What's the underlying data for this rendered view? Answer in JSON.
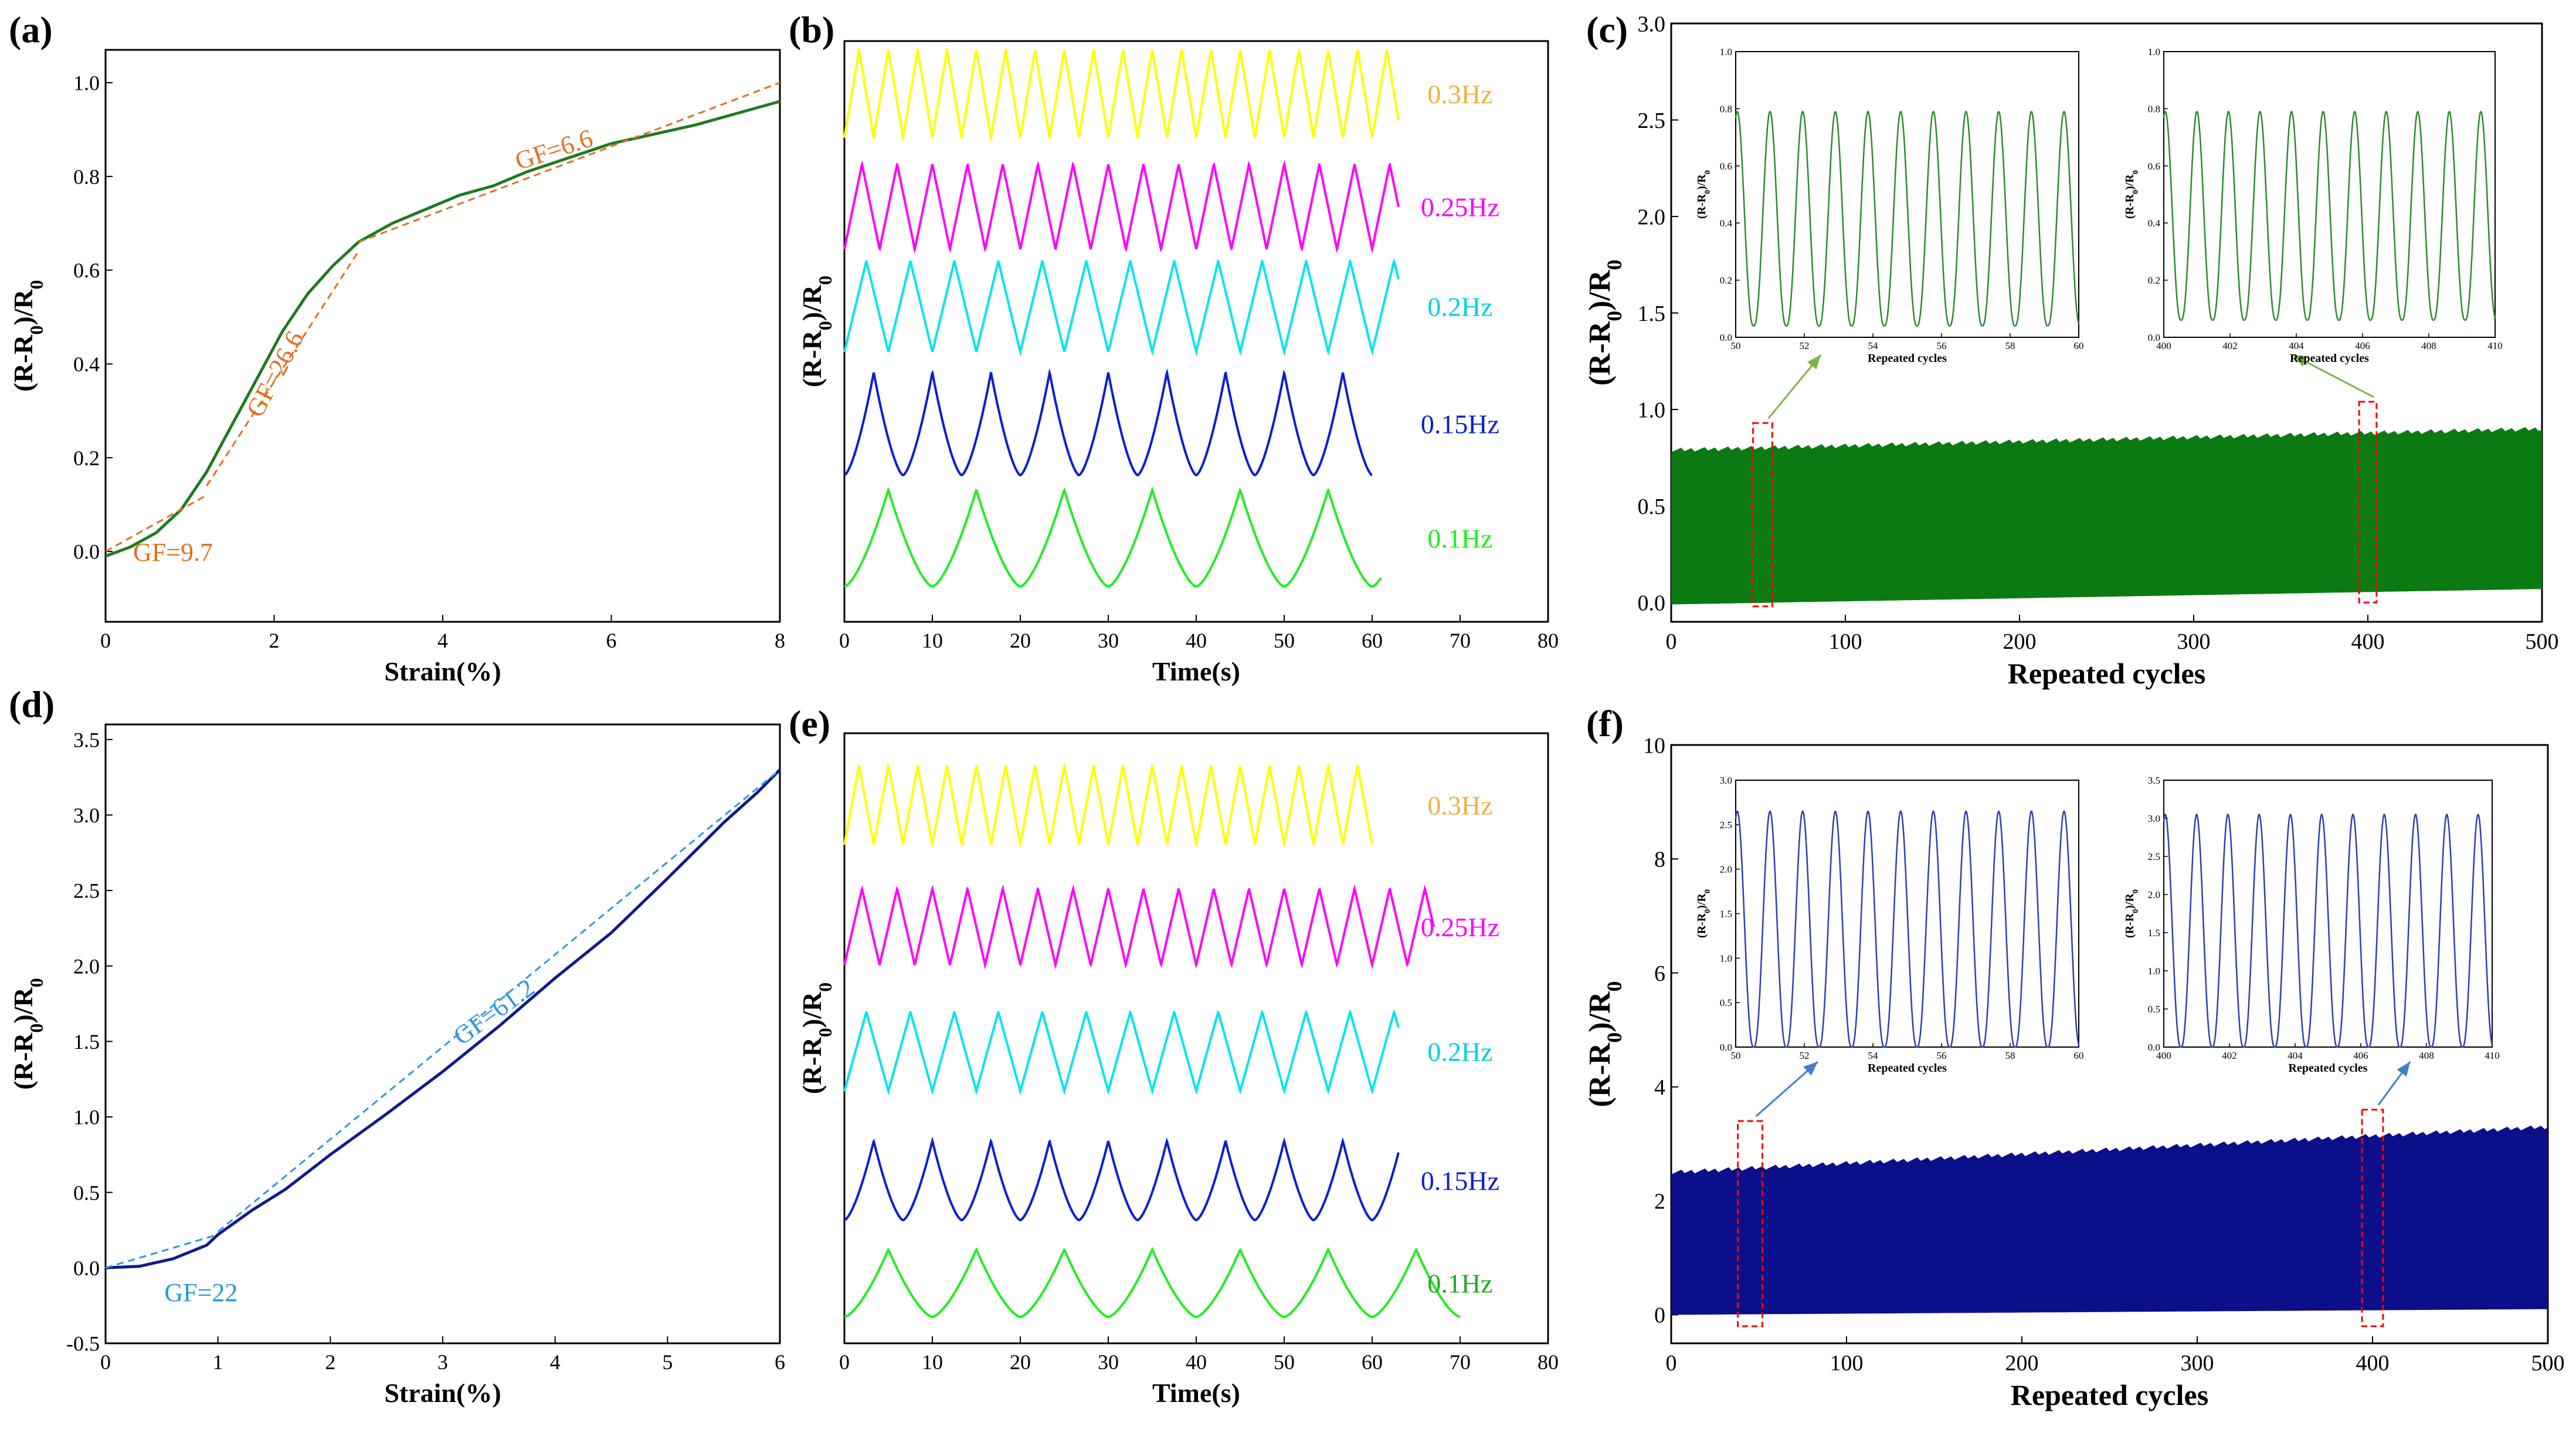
{
  "panel_labels": [
    "(a)",
    "(b)",
    "(c)",
    "(d)",
    "(e)",
    "(f)"
  ],
  "colors": {
    "green_curve": "#1f7a1f",
    "fit_orange": "#e07020",
    "navy_curve": "#101a8a",
    "fit_blue": "#2a9ad8",
    "fill_green": "#0b7a12",
    "fill_navy": "#0c0f8a",
    "inset_green": "#2e8b2e",
    "inset_blue": "#2f3fb0",
    "box_red": "#ff0000",
    "arrow_green": "#7ab648",
    "arrow_blue": "#3f7fc8"
  },
  "chart_data": [
    {
      "panel": "(a)",
      "type": "line",
      "xlabel": "Strain(%)",
      "ylabel": "(R-R0)/R0",
      "xlim": [
        0,
        8
      ],
      "ylim": [
        -0.15,
        1.07
      ],
      "xticks": [
        "0",
        "2",
        "4",
        "6",
        "8"
      ],
      "yticks": [
        "0.0",
        "0.2",
        "0.4",
        "0.6",
        "0.8",
        "1.0"
      ],
      "series": [
        {
          "name": "response",
          "x": [
            0,
            0.3,
            0.6,
            0.9,
            1.2,
            1.5,
            1.8,
            2.1,
            2.4,
            2.7,
            3.0,
            3.4,
            3.8,
            4.2,
            4.6,
            5.0,
            5.5,
            6.0,
            6.5,
            7.0,
            7.5,
            8.0
          ],
          "y": [
            -0.01,
            0.01,
            0.04,
            0.09,
            0.17,
            0.27,
            0.37,
            0.47,
            0.55,
            0.61,
            0.66,
            0.7,
            0.73,
            0.76,
            0.78,
            0.81,
            0.84,
            0.87,
            0.89,
            0.91,
            0.935,
            0.96
          ]
        }
      ],
      "fits": [
        {
          "label": "GF=9.7",
          "x": [
            0,
            1.2
          ],
          "y": [
            0.0,
            0.12
          ]
        },
        {
          "label": "GF=26.6",
          "x": [
            1.2,
            3.0
          ],
          "y": [
            0.14,
            0.64
          ]
        },
        {
          "label": "GF=6.6",
          "x": [
            3.0,
            8.0
          ],
          "y": [
            0.66,
            1.0
          ]
        }
      ]
    },
    {
      "panel": "(b)",
      "type": "line",
      "xlabel": "Time(s)",
      "ylabel": "(R-R0)/R0",
      "xlim": [
        0,
        80
      ],
      "xticks": [
        "0",
        "10",
        "20",
        "30",
        "40",
        "50",
        "60",
        "70",
        "80"
      ],
      "series": [
        {
          "name": "0.3Hz",
          "frequency_hz": 0.3,
          "t_end": 63,
          "shape": "triangle",
          "color": "#ffff00",
          "label_color": "#f0b040"
        },
        {
          "name": "0.25Hz",
          "frequency_hz": 0.25,
          "t_end": 63,
          "shape": "triangle",
          "color": "#ff00ff",
          "label_color": "#ff00ff"
        },
        {
          "name": "0.2Hz",
          "frequency_hz": 0.2,
          "t_end": 63,
          "shape": "triangle",
          "color": "#00e5ee",
          "label_color": "#00d0e0"
        },
        {
          "name": "0.15Hz",
          "frequency_hz": 0.15,
          "t_end": 60,
          "shape": "cusp",
          "color": "#0a1fd0",
          "label_color": "#0a1fd0"
        },
        {
          "name": "0.1Hz",
          "frequency_hz": 0.1,
          "t_end": 61,
          "shape": "cusp",
          "color": "#22ee22",
          "label_color": "#22ee22"
        }
      ]
    },
    {
      "panel": "(c)",
      "type": "area",
      "xlabel": "Repeated cycles",
      "ylabel": "(R-R0)/R0",
      "xlim": [
        0,
        500
      ],
      "ylim": [
        -0.1,
        3.0
      ],
      "xticks": [
        "0",
        "100",
        "200",
        "300",
        "400",
        "500"
      ],
      "yticks": [
        "0.0",
        "0.5",
        "1.0",
        "1.5",
        "2.0",
        "2.5",
        "3.0"
      ],
      "upper_envelope": {
        "x": [
          0,
          500
        ],
        "y": [
          0.79,
          0.9
        ]
      },
      "lower_envelope": {
        "x": [
          0,
          500
        ],
        "y": [
          -0.01,
          0.07
        ]
      },
      "highlight_boxes": [
        {
          "x_range": [
            47,
            58
          ],
          "y_range": [
            -0.02,
            0.93
          ]
        },
        {
          "x_range": [
            395,
            405
          ],
          "y_range": [
            0.0,
            1.04
          ]
        }
      ],
      "insets": [
        {
          "xlabel": "Repeated cycles",
          "ylabel": "(R-R0)/R0",
          "xlim": [
            50,
            60
          ],
          "ylim": [
            0,
            1.0
          ],
          "xticks": [
            "50",
            "52",
            "54",
            "56",
            "58",
            "60"
          ],
          "yticks": [
            "0.0",
            "0.2",
            "0.4",
            "0.6",
            "0.8",
            "1.0"
          ],
          "peak": 0.79,
          "trough": 0.04
        },
        {
          "xlabel": "Repeated cycles",
          "ylabel": "(R-R0)/R0",
          "xlim": [
            400,
            410
          ],
          "ylim": [
            0,
            1.0
          ],
          "xticks": [
            "400",
            "402",
            "404",
            "406",
            "408",
            "410"
          ],
          "yticks": [
            "0.0",
            "0.2",
            "0.4",
            "0.6",
            "0.8",
            "1.0"
          ],
          "peak": 0.79,
          "trough": 0.06
        }
      ]
    },
    {
      "panel": "(d)",
      "type": "line",
      "xlabel": "Strain(%)",
      "ylabel": "(R-R0)/R0",
      "xlim": [
        0,
        6
      ],
      "ylim": [
        -0.5,
        3.6
      ],
      "xticks": [
        "0",
        "1",
        "2",
        "3",
        "4",
        "5",
        "6"
      ],
      "yticks": [
        "-0.5",
        "0.0",
        "0.5",
        "1.0",
        "1.5",
        "2.0",
        "2.5",
        "3.0",
        "3.5"
      ],
      "series": [
        {
          "name": "response",
          "x": [
            0,
            0.3,
            0.6,
            0.9,
            1.0,
            1.3,
            1.6,
            2.0,
            2.5,
            3.0,
            3.5,
            4.0,
            4.5,
            5.0,
            5.5,
            5.8,
            6.0
          ],
          "y": [
            0.0,
            0.01,
            0.06,
            0.15,
            0.22,
            0.38,
            0.52,
            0.75,
            1.02,
            1.3,
            1.6,
            1.92,
            2.22,
            2.58,
            2.95,
            3.15,
            3.3
          ]
        }
      ],
      "fits": [
        {
          "label": "GF=22",
          "x": [
            0,
            1.0
          ],
          "y": [
            0.0,
            0.22
          ]
        },
        {
          "label": "GF=61.2",
          "x": [
            1.0,
            6.0
          ],
          "y": [
            0.24,
            3.3
          ]
        }
      ]
    },
    {
      "panel": "(e)",
      "type": "line",
      "xlabel": "Time(s)",
      "ylabel": "(R-R0)/R0",
      "xlim": [
        0,
        80
      ],
      "xticks": [
        "0",
        "10",
        "20",
        "30",
        "40",
        "50",
        "60",
        "70",
        "80"
      ],
      "series": [
        {
          "name": "0.3Hz",
          "frequency_hz": 0.3,
          "t_end": 60,
          "shape": "triangle",
          "color": "#ffff00",
          "label_color": "#f0b040"
        },
        {
          "name": "0.25Hz",
          "frequency_hz": 0.25,
          "t_end": 67,
          "shape": "triangle",
          "color": "#ff00ff",
          "label_color": "#ff00ff"
        },
        {
          "name": "0.2Hz",
          "frequency_hz": 0.2,
          "t_end": 63,
          "shape": "triangle",
          "color": "#00e5ee",
          "label_color": "#00d0e0"
        },
        {
          "name": "0.15Hz",
          "frequency_hz": 0.15,
          "t_end": 63,
          "shape": "cusp",
          "color": "#0a1fd0",
          "label_color": "#0a1fd0"
        },
        {
          "name": "0.1Hz",
          "frequency_hz": 0.1,
          "t_end": 70,
          "shape": "cusp",
          "color": "#22ee22",
          "label_color": "#22aa22"
        }
      ]
    },
    {
      "panel": "(f)",
      "type": "area",
      "xlabel": "Repeated cycles",
      "ylabel": "(R-R0)/R0",
      "xlim": [
        0,
        500
      ],
      "ylim": [
        -0.5,
        10
      ],
      "xticks": [
        "0",
        "100",
        "200",
        "300",
        "400",
        "500"
      ],
      "yticks": [
        "0",
        "2",
        "4",
        "6",
        "8",
        "10"
      ],
      "upper_envelope": {
        "x": [
          0,
          500
        ],
        "y": [
          2.5,
          3.3
        ]
      },
      "lower_envelope": {
        "x": [
          0,
          500
        ],
        "y": [
          0.0,
          0.1
        ]
      },
      "highlight_boxes": [
        {
          "x_range": [
            38,
            52
          ],
          "y_range": [
            -0.2,
            3.4
          ]
        },
        {
          "x_range": [
            394,
            406
          ],
          "y_range": [
            -0.2,
            3.6
          ]
        }
      ],
      "insets": [
        {
          "xlabel": "Repeated cycles",
          "ylabel": "(R-R0)/R0",
          "xlim": [
            50,
            60
          ],
          "ylim": [
            0,
            3.0
          ],
          "xticks": [
            "50",
            "52",
            "54",
            "56",
            "58",
            "60"
          ],
          "yticks": [
            "0.0",
            "0.5",
            "1.0",
            "1.5",
            "2.0",
            "2.5",
            "3.0"
          ],
          "peak": 2.65,
          "trough": 0.0
        },
        {
          "xlabel": "Repeated cycles",
          "ylabel": "(R-R0)/R0",
          "xlim": [
            400,
            410
          ],
          "ylim": [
            0,
            3.5
          ],
          "xticks": [
            "400",
            "402",
            "404",
            "406",
            "408",
            "410"
          ],
          "yticks": [
            "0.0",
            "0.5",
            "1.0",
            "1.5",
            "2.0",
            "2.5",
            "3.0",
            "3.5"
          ],
          "peak": 3.05,
          "trough": 0.0
        }
      ]
    }
  ]
}
